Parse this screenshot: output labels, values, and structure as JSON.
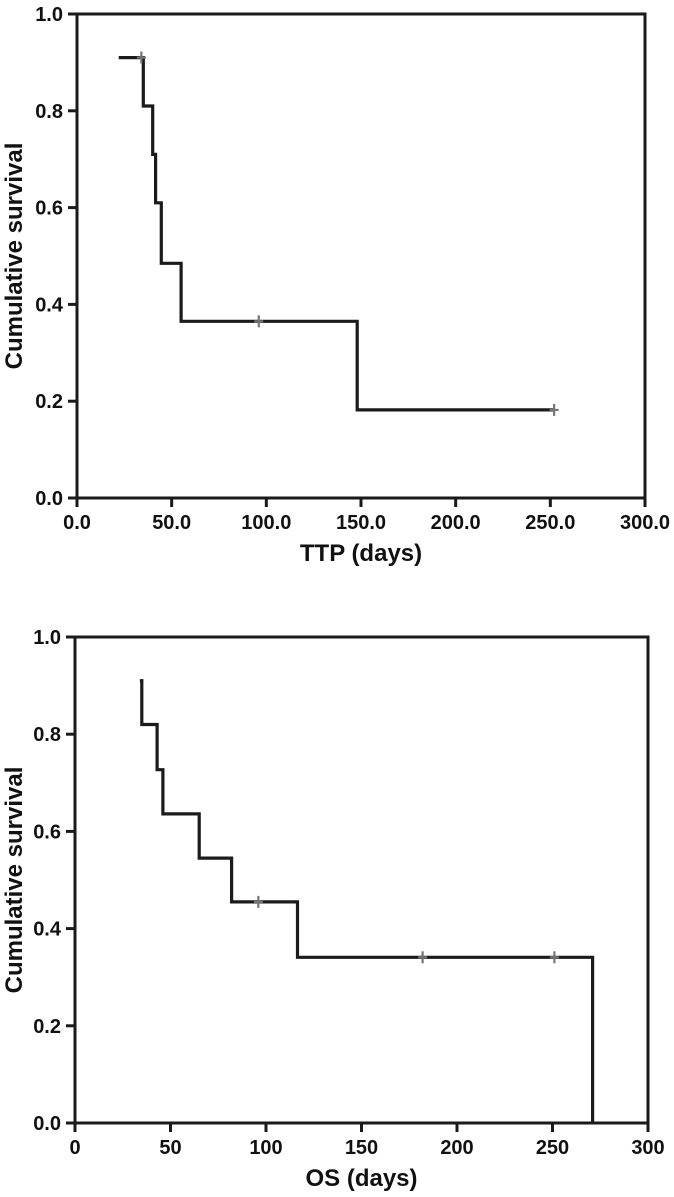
{
  "figure": {
    "background": "#ffffff",
    "curve_color": "#1b1b1b",
    "axis_color": "#1a1a1a",
    "censor_color": "#757575"
  },
  "chart_data": [
    {
      "id": "ttp",
      "type": "line",
      "subtype": "kaplan-meier-step",
      "title": "",
      "xlabel": "TTP (days)",
      "ylabel": "Cumulative survival",
      "xlim": [
        0,
        300
      ],
      "ylim": [
        0,
        1.0
      ],
      "grid": false,
      "legend": "none",
      "frame": true,
      "xticks": [
        {
          "value": 0,
          "label": "0.0"
        },
        {
          "value": 50,
          "label": "50.0"
        },
        {
          "value": 100,
          "label": "100.0"
        },
        {
          "value": 150,
          "label": "150.0"
        },
        {
          "value": 200,
          "label": "200.0"
        },
        {
          "value": 250,
          "label": "250.0"
        },
        {
          "value": 300,
          "label": "300.0"
        }
      ],
      "yticks": [
        {
          "value": 0.0,
          "label": "0.0"
        },
        {
          "value": 0.2,
          "label": "0.2"
        },
        {
          "value": 0.4,
          "label": "0.4"
        },
        {
          "value": 0.6,
          "label": "0.6"
        },
        {
          "value": 0.8,
          "label": "0.8"
        },
        {
          "value": 1.0,
          "label": "1.0"
        }
      ],
      "series": [
        {
          "name": "TTP cumulative survival",
          "points": [
            [
              22,
              0.91
            ],
            [
              35,
              0.91
            ],
            [
              35,
              0.81
            ],
            [
              40,
              0.81
            ],
            [
              40,
              0.71
            ],
            [
              41.5,
              0.71
            ],
            [
              41.5,
              0.61
            ],
            [
              44.5,
              0.61
            ],
            [
              44.5,
              0.485
            ],
            [
              55,
              0.485
            ],
            [
              55,
              0.365
            ],
            [
              148,
              0.365
            ],
            [
              148,
              0.182
            ],
            [
              252,
              0.182
            ]
          ],
          "censored": [
            [
              34,
              0.91
            ],
            [
              96,
              0.365
            ],
            [
              252,
              0.182
            ]
          ]
        }
      ]
    },
    {
      "id": "os",
      "type": "line",
      "subtype": "kaplan-meier-step",
      "title": "",
      "xlabel": "OS (days)",
      "ylabel": "Cumulative survival",
      "xlim": [
        0,
        300
      ],
      "ylim": [
        0,
        1.0
      ],
      "grid": false,
      "legend": "none",
      "frame": true,
      "xticks": [
        {
          "value": 0,
          "label": "0"
        },
        {
          "value": 50,
          "label": "50"
        },
        {
          "value": 100,
          "label": "100"
        },
        {
          "value": 150,
          "label": "150"
        },
        {
          "value": 200,
          "label": "200"
        },
        {
          "value": 250,
          "label": "250"
        },
        {
          "value": 300,
          "label": "300"
        }
      ],
      "yticks": [
        {
          "value": 0.0,
          "label": "0.0"
        },
        {
          "value": 0.2,
          "label": "0.2"
        },
        {
          "value": 0.4,
          "label": "0.4"
        },
        {
          "value": 0.6,
          "label": "0.6"
        },
        {
          "value": 0.8,
          "label": "0.8"
        },
        {
          "value": 1.0,
          "label": "1.0"
        }
      ],
      "series": [
        {
          "name": "OS cumulative survival",
          "points": [
            [
              34,
              0.91
            ],
            [
              35,
              0.91
            ],
            [
              35,
              0.82
            ],
            [
              43,
              0.82
            ],
            [
              43,
              0.727
            ],
            [
              46,
              0.727
            ],
            [
              46,
              0.636
            ],
            [
              65,
              0.636
            ],
            [
              65,
              0.545
            ],
            [
              82,
              0.545
            ],
            [
              82,
              0.455
            ],
            [
              116.5,
              0.455
            ],
            [
              116.5,
              0.341
            ],
            [
              271,
              0.341
            ],
            [
              271,
              0.0
            ]
          ],
          "censored": [
            [
              96,
              0.455
            ],
            [
              182,
              0.341
            ],
            [
              251,
              0.341
            ]
          ]
        }
      ]
    }
  ]
}
